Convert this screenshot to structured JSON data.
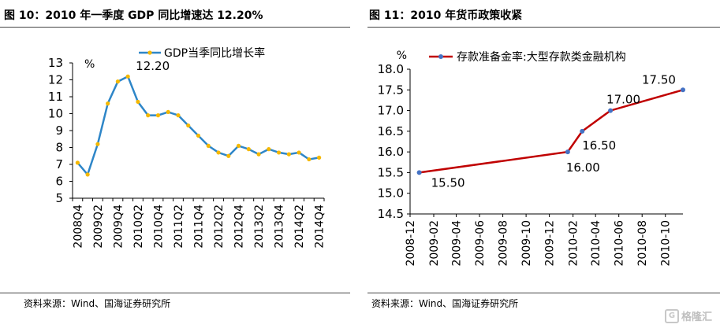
{
  "left": {
    "title": "图 10：2010 年一季度 GDP 同比增速达 12.20%",
    "source": "资料来源：Wind、国海证券研究所"
  },
  "right": {
    "title": "图 11：2010 年货币政策收紧",
    "source": "资料来源：Wind、国海证券研究所"
  },
  "watermark": "格隆汇",
  "chart_data": [
    {
      "type": "line",
      "xlabel": "",
      "ylabel": "%",
      "ylim": [
        5,
        13
      ],
      "yticks": [
        5,
        6,
        7,
        8,
        9,
        10,
        11,
        12,
        13
      ],
      "grid": false,
      "legend_placement": "top",
      "x": [
        "2008Q4",
        "2009Q1",
        "2009Q2",
        "2009Q3",
        "2009Q4",
        "2010Q1",
        "2010Q2",
        "2010Q3",
        "2010Q4",
        "2011Q1",
        "2011Q2",
        "2011Q3",
        "2011Q4",
        "2012Q1",
        "2012Q2",
        "2012Q3",
        "2012Q4",
        "2013Q1",
        "2013Q2",
        "2013Q3",
        "2013Q4",
        "2014Q1",
        "2014Q2",
        "2014Q3",
        "2014Q4"
      ],
      "x_tick_labels": [
        "2008Q4",
        "2009Q2",
        "2009Q4",
        "2010Q2",
        "2010Q4",
        "2011Q2",
        "2011Q4",
        "2012Q2",
        "2012Q4",
        "2013Q2",
        "2013Q4",
        "2014Q2",
        "2014Q4"
      ],
      "series": [
        {
          "name": "GDP当季同比增长率",
          "color": "#2E86C8",
          "marker_color": "#F5B800",
          "values": [
            7.1,
            6.4,
            8.2,
            10.6,
            11.9,
            12.2,
            10.7,
            9.9,
            9.9,
            10.1,
            9.9,
            9.3,
            8.7,
            8.1,
            7.7,
            7.5,
            8.1,
            7.9,
            7.6,
            7.9,
            7.7,
            7.6,
            7.7,
            7.3,
            7.4
          ]
        }
      ],
      "annotations": [
        {
          "x": "2010Q1",
          "text": "12.20"
        }
      ]
    },
    {
      "type": "line",
      "xlabel": "",
      "ylabel": "%",
      "ylim": [
        14.5,
        18.0
      ],
      "yticks": [
        "14.5",
        "15.0",
        "15.5",
        "16.0",
        "16.5",
        "17.0",
        "17.5",
        "18.0"
      ],
      "grid": false,
      "legend_placement": "top",
      "x_range": [
        "2008-12",
        "2010-11"
      ],
      "x_tick_labels": [
        "2008-12",
        "2009-02",
        "2009-04",
        "2009-06",
        "2009-08",
        "2009-10",
        "2009-12",
        "2010-02",
        "2010-04",
        "2010-06",
        "2010-08",
        "2010-10"
      ],
      "series": [
        {
          "name": "存款准备金率:大型存款类金融机构",
          "color": "#C00000",
          "marker_color": "#4472C4",
          "points": [
            {
              "date": "2008-12-25",
              "value": 15.5
            },
            {
              "date": "2010-01-18",
              "value": 16.0
            },
            {
              "date": "2010-02-25",
              "value": 16.5
            },
            {
              "date": "2010-05-10",
              "value": 17.0
            },
            {
              "date": "2010-11-16",
              "value": 17.5
            }
          ]
        }
      ],
      "data_labels": [
        "15.50",
        "16.00",
        "16.50",
        "17.00",
        "17.50"
      ]
    }
  ]
}
